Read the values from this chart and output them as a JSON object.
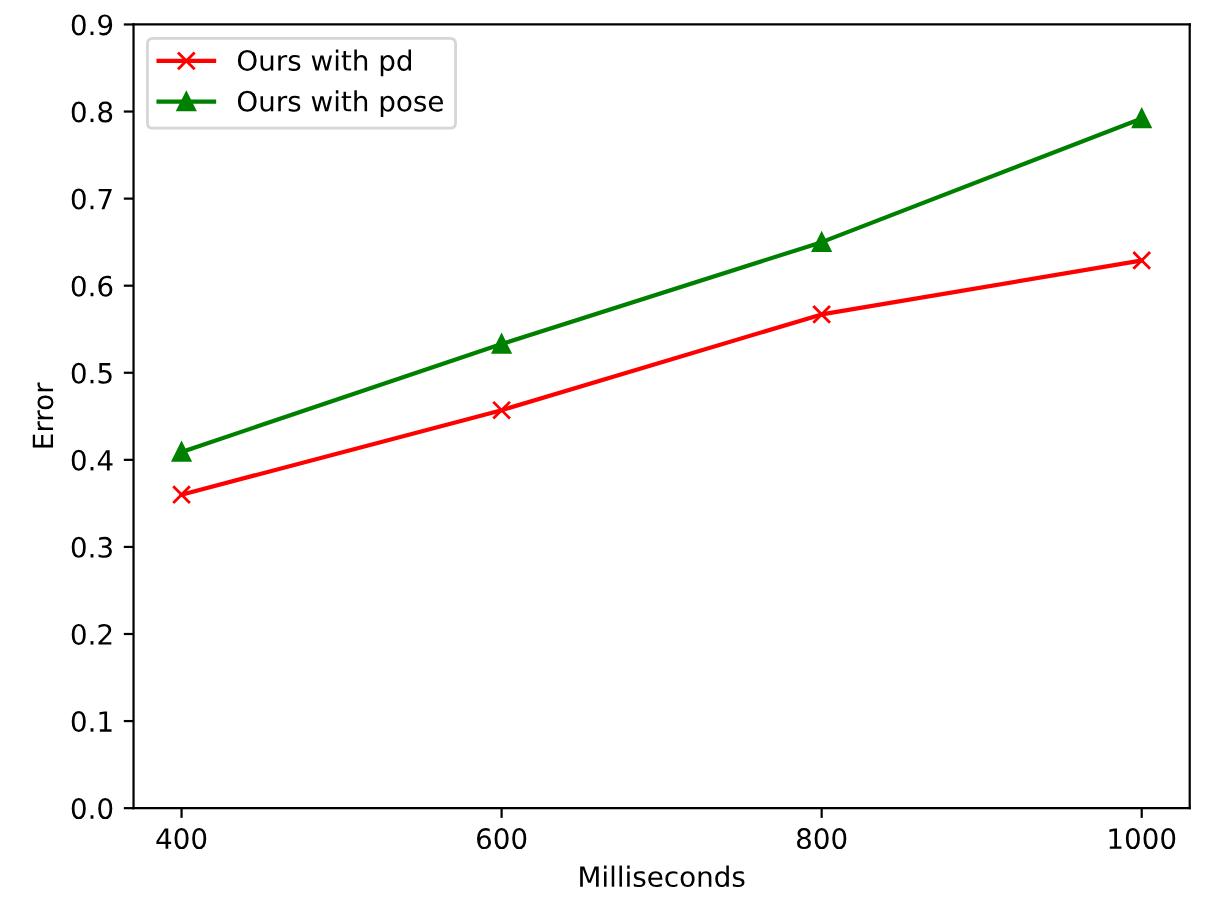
{
  "chart_data": {
    "type": "line",
    "xlabel": "Milliseconds",
    "ylabel": "Error",
    "x": [
      400,
      600,
      800,
      1000
    ],
    "series": [
      {
        "name": "Ours with pd",
        "color": "#ff0000",
        "marker": "cross",
        "values": [
          0.36,
          0.457,
          0.567,
          0.629
        ]
      },
      {
        "name": "Ours with pose",
        "color": "#008000",
        "marker": "triangle",
        "values": [
          0.409,
          0.533,
          0.65,
          0.792
        ]
      }
    ],
    "xlim": [
      370,
      1030
    ],
    "xticks": [
      400,
      600,
      800,
      1000
    ],
    "ylim": [
      0,
      0.9
    ],
    "yticks": [
      {
        "value": 0,
        "label": "0.0"
      },
      0.1,
      0.2,
      0.3,
      0.4,
      0.5,
      0.6,
      0.7,
      0.8,
      0.9
    ],
    "legend": "top left",
    "grid": false,
    "line_style": "solid"
  }
}
